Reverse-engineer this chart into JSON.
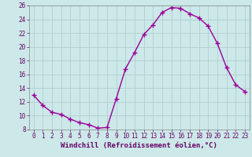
{
  "x": [
    0,
    1,
    2,
    3,
    4,
    5,
    6,
    7,
    8,
    9,
    10,
    11,
    12,
    13,
    14,
    15,
    16,
    17,
    18,
    19,
    20,
    21,
    22,
    23
  ],
  "y": [
    13.0,
    11.5,
    10.5,
    10.2,
    9.5,
    9.0,
    8.7,
    8.2,
    8.3,
    12.5,
    16.8,
    19.2,
    21.8,
    23.2,
    25.0,
    25.7,
    25.6,
    24.8,
    24.2,
    23.0,
    20.5,
    17.0,
    14.5,
    13.5
  ],
  "line_color": "#990099",
  "marker": "+",
  "marker_size": 4,
  "bg_color": "#cce8e8",
  "grid_color": "#b0d0d0",
  "xlabel": "Windchill (Refroidissement éolien,°C)",
  "xlabel_fontsize": 6.5,
  "ylim": [
    8,
    26
  ],
  "yticks": [
    8,
    10,
    12,
    14,
    16,
    18,
    20,
    22,
    24,
    26
  ],
  "xticks": [
    0,
    1,
    2,
    3,
    4,
    5,
    6,
    7,
    8,
    9,
    10,
    11,
    12,
    13,
    14,
    15,
    16,
    17,
    18,
    19,
    20,
    21,
    22,
    23
  ],
  "tick_fontsize": 5.5,
  "line_width": 1.0
}
